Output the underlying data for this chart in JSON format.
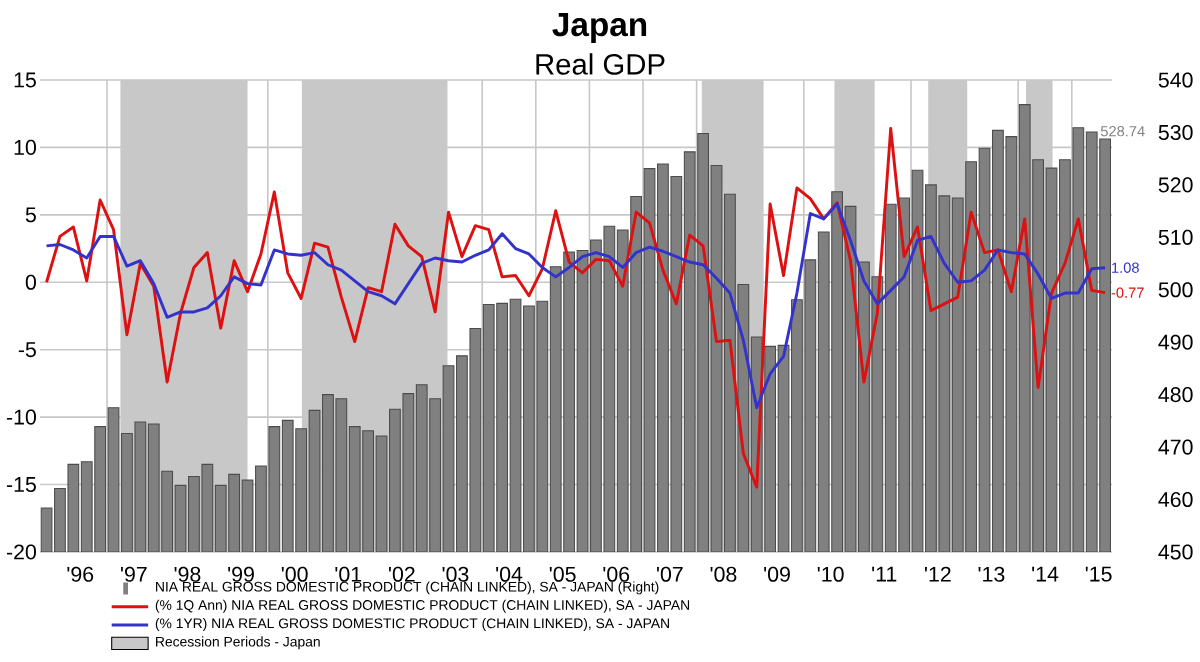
{
  "chart_data": {
    "type": "line",
    "title": "Japan",
    "subtitle": "Real GDP",
    "x": [
      "1995-11-15",
      "1996-02-15",
      "1996-05-15",
      "1996-08-15",
      "1996-11-15",
      "1997-02-15",
      "1997-05-15",
      "1997-08-15",
      "1997-11-15",
      "1998-02-15",
      "1998-05-15",
      "1998-08-15",
      "1998-11-15",
      "1999-02-15",
      "1999-05-15",
      "1999-08-15",
      "1999-11-15",
      "2000-02-15",
      "2000-05-15",
      "2000-08-15",
      "2000-11-15",
      "2001-02-15",
      "2001-05-15",
      "2001-08-15",
      "2001-11-15",
      "2002-02-15",
      "2002-05-15",
      "2002-08-15",
      "2002-11-15",
      "2003-02-15",
      "2003-05-15",
      "2003-08-15",
      "2003-11-15",
      "2004-02-15",
      "2004-05-15",
      "2004-08-15",
      "2004-11-15",
      "2005-02-15",
      "2005-05-15",
      "2005-08-15",
      "2005-11-15",
      "2006-02-15",
      "2006-05-15",
      "2006-08-15",
      "2006-11-15",
      "2007-02-15",
      "2007-05-15",
      "2007-08-15",
      "2007-11-15",
      "2008-02-15",
      "2008-05-15",
      "2008-08-15",
      "2008-11-15",
      "2009-02-15",
      "2009-05-15",
      "2009-08-15",
      "2009-11-15",
      "2010-02-15",
      "2010-05-15",
      "2010-08-15",
      "2010-11-15",
      "2011-02-15",
      "2011-05-15",
      "2011-08-15",
      "2011-11-15",
      "2012-02-15",
      "2012-05-15",
      "2012-08-15",
      "2012-11-15",
      "2013-02-15",
      "2013-05-15",
      "2013-08-15",
      "2013-11-15",
      "2014-02-15",
      "2014-05-15",
      "2014-08-15",
      "2014-11-15",
      "2015-02-15",
      "2015-05-15",
      "2015-08-15"
    ],
    "series": [
      {
        "name": "NIA REAL GROSS DOMESTIC PRODUCT (CHAIN LINKED), SA - JAPAN   (Right)",
        "type": "bar",
        "axis": "y2",
        "color": "#808080",
        "values": [
          458.4,
          462.1,
          466.7,
          467.2,
          473.9,
          477.5,
          472.6,
          474.8,
          474.4,
          465.4,
          462.7,
          464.4,
          466.7,
          462.7,
          464.8,
          463.7,
          466.4,
          473.9,
          475.1,
          473.5,
          477.0,
          480.0,
          479.2,
          473.9,
          473.1,
          472.1,
          477.2,
          480.2,
          481.9,
          479.2,
          485.5,
          487.4,
          492.6,
          497.2,
          497.4,
          498.2,
          496.9,
          497.8,
          504.4,
          507.2,
          507.5,
          509.5,
          512.1,
          511.4,
          517.8,
          523.1,
          524.0,
          521.6,
          526.3,
          529.8,
          523.7,
          518.2,
          501.0,
          491.0,
          489.2,
          489.4,
          498.1,
          505.7,
          511.0,
          518.7,
          515.9,
          505.3,
          502.5,
          516.3,
          517.5,
          522.8,
          520.0,
          517.9,
          517.5,
          524.4,
          527.0,
          530.4,
          529.2,
          535.3,
          524.8,
          523.2,
          524.8,
          530.9,
          530.1,
          528.74
        ],
        "value_labels": [
          null,
          null,
          null,
          null,
          null,
          null,
          null,
          null,
          null,
          null,
          null,
          null,
          null,
          null,
          null,
          null,
          null,
          null,
          null,
          null,
          null,
          null,
          null,
          null,
          null,
          null,
          null,
          null,
          null,
          null,
          null,
          null,
          null,
          null,
          null,
          null,
          null,
          null,
          null,
          null,
          null,
          null,
          null,
          null,
          null,
          null,
          null,
          null,
          null,
          null,
          null,
          null,
          null,
          null,
          null,
          null,
          null,
          null,
          null,
          null,
          null,
          null,
          null,
          null,
          null,
          null,
          null,
          null,
          null,
          null,
          null,
          null,
          null,
          null,
          null,
          null,
          null,
          null,
          null,
          "528.74"
        ]
      },
      {
        "name": "(% 1Q Ann) NIA REAL GROSS DOMESTIC PRODUCT (CHAIN LINKED), SA - JAPAN",
        "color": "#dd1111",
        "values": [
          0,
          3.4,
          4.1,
          0.1,
          6.1,
          3.9,
          -3.9,
          1.4,
          -0.3,
          -7.4,
          -2.3,
          1.1,
          2.2,
          -3.4,
          1.6,
          -0.7,
          2.1,
          6.7,
          0.7,
          -1.2,
          2.9,
          2.6,
          -1.1,
          -4.4,
          -0.4,
          -0.7,
          4.3,
          2.7,
          1.9,
          -2.2,
          5.2,
          1.9,
          4.2,
          3.9,
          0.4,
          0.5,
          -1.0,
          1.0,
          5.3,
          1.5,
          0.7,
          1.7,
          1.6,
          -0.3,
          5.2,
          4.4,
          0.9,
          -1.6,
          3.5,
          2.7,
          -4.4,
          -4.3,
          -12.7,
          -15.2,
          5.8,
          0.5,
          7.0,
          6.2,
          4.7,
          5.9,
          1.6,
          -7.4,
          -2.3,
          11.4,
          1.9,
          4.1,
          -2.1,
          -1.6,
          -1.1,
          5.2,
          2.2,
          2.4,
          -0.7,
          4.7,
          -7.8,
          -0.8,
          1.4,
          4.7,
          -0.6,
          -0.77
        ],
        "value_labels": [
          null,
          null,
          null,
          null,
          null,
          null,
          null,
          null,
          null,
          null,
          null,
          null,
          null,
          null,
          null,
          null,
          null,
          null,
          null,
          null,
          null,
          null,
          null,
          null,
          null,
          null,
          null,
          null,
          null,
          null,
          null,
          null,
          null,
          null,
          null,
          null,
          null,
          null,
          null,
          null,
          null,
          null,
          null,
          null,
          null,
          null,
          null,
          null,
          null,
          null,
          null,
          null,
          null,
          null,
          null,
          null,
          null,
          null,
          null,
          null,
          null,
          null,
          null,
          null,
          null,
          null,
          null,
          null,
          null,
          null,
          null,
          null,
          null,
          null,
          null,
          null,
          null,
          null,
          null,
          "-0.77"
        ]
      },
      {
        "name": "(% 1YR) NIA REAL GROSS DOMESTIC PRODUCT (CHAIN LINKED), SA - JAPAN",
        "color": "#3333cc",
        "values": [
          2.7,
          2.8,
          2.4,
          1.8,
          3.4,
          3.4,
          1.2,
          1.6,
          -0.1,
          -2.6,
          -2.2,
          -2.2,
          -1.9,
          -1.0,
          0.4,
          -0.1,
          -0.2,
          2.4,
          2.1,
          2.0,
          2.2,
          1.3,
          0.9,
          0.1,
          -0.7,
          -1.0,
          -1.6,
          -0.1,
          1.4,
          1.8,
          1.6,
          1.5,
          2.0,
          2.4,
          3.6,
          2.5,
          2.1,
          1.1,
          0.4,
          1.1,
          1.9,
          2.2,
          1.9,
          1.1,
          2.2,
          2.6,
          2.3,
          1.9,
          1.5,
          1.3,
          0.3,
          -0.8,
          -4.3,
          -9.3,
          -6.8,
          -5.5,
          -0.8,
          5.1,
          4.7,
          5.8,
          3.1,
          0.1,
          -1.6,
          -0.6,
          0.4,
          3.1,
          3.4,
          1.4,
          0.0,
          0.1,
          0.9,
          2.4,
          2.2,
          2.1,
          0.6,
          -1.2,
          -0.8,
          -0.8,
          1.0,
          1.08
        ],
        "value_labels": [
          null,
          null,
          null,
          null,
          null,
          null,
          null,
          null,
          null,
          null,
          null,
          null,
          null,
          null,
          null,
          null,
          null,
          null,
          null,
          null,
          null,
          null,
          null,
          null,
          null,
          null,
          null,
          null,
          null,
          null,
          null,
          null,
          null,
          null,
          null,
          null,
          null,
          null,
          null,
          null,
          null,
          null,
          null,
          null,
          null,
          null,
          null,
          null,
          null,
          null,
          null,
          null,
          null,
          null,
          null,
          null,
          null,
          null,
          null,
          null,
          null,
          null,
          null,
          null,
          null,
          null,
          null,
          null,
          null,
          null,
          null,
          null,
          null,
          null,
          null,
          null,
          null,
          null,
          null,
          "1.08"
        ]
      }
    ],
    "bands": [
      {
        "axis": "x",
        "from": "1997-04-01",
        "to": "1999-08-15",
        "color": "#c8c8c8",
        "label": "Recession Periods - Japan"
      },
      {
        "axis": "x",
        "from": "2000-08-20",
        "to": "2003-05-08",
        "color": "#c8c8c8"
      },
      {
        "axis": "x",
        "from": "2008-02-06",
        "to": "2009-04-01",
        "color": "#c8c8c8"
      },
      {
        "axis": "x",
        "from": "2010-07-27",
        "to": "2011-04-27",
        "color": "#c8c8c8"
      },
      {
        "axis": "x",
        "from": "2012-04-27",
        "to": "2013-01-19",
        "color": "#c8c8c8"
      },
      {
        "axis": "x",
        "from": "2014-02-24",
        "to": "2014-08-22",
        "color": "#c8c8c8"
      }
    ],
    "xlim": [
      "1995-10-01",
      "2015-10-01"
    ],
    "xticks": [
      {
        "value": "1997-01-01",
        "label": null
      },
      {
        "value": "1998-01-01",
        "label": null
      },
      {
        "value": "1999-01-01",
        "label": null
      },
      {
        "value": "2000-01-01",
        "label": null
      },
      {
        "value": "2001-01-01",
        "label": null
      },
      {
        "value": "2002-01-01",
        "label": null
      },
      {
        "value": "2003-01-01",
        "label": null
      },
      {
        "value": "2004-01-01",
        "label": null
      },
      {
        "value": "2005-01-01",
        "label": null
      },
      {
        "value": "2006-01-01",
        "label": null
      },
      {
        "value": "2007-01-01",
        "label": null
      },
      {
        "value": "2008-01-01",
        "label": null
      },
      {
        "value": "2009-01-01",
        "label": null
      },
      {
        "value": "2010-01-01",
        "label": null
      },
      {
        "value": "2011-01-01",
        "label": null
      },
      {
        "value": "2012-01-01",
        "label": null
      },
      {
        "value": "2013-01-01",
        "label": null
      },
      {
        "value": "2014-01-01",
        "label": null
      },
      {
        "value": "2015-01-01",
        "label": null
      },
      {
        "value": "1996-07-01",
        "label": "'96"
      },
      {
        "value": "1997-07-01",
        "label": "'97"
      },
      {
        "value": "1998-07-01",
        "label": "'98"
      },
      {
        "value": "1999-07-01",
        "label": "'99"
      },
      {
        "value": "2000-07-01",
        "label": "'00"
      },
      {
        "value": "2001-07-01",
        "label": "'01"
      },
      {
        "value": "2002-07-01",
        "label": "'02"
      },
      {
        "value": "2003-07-01",
        "label": "'03"
      },
      {
        "value": "2004-07-01",
        "label": "'04"
      },
      {
        "value": "2005-07-01",
        "label": "'05"
      },
      {
        "value": "2006-07-01",
        "label": "'06"
      },
      {
        "value": "2007-07-01",
        "label": "'07"
      },
      {
        "value": "2008-07-01",
        "label": "'08"
      },
      {
        "value": "2009-07-01",
        "label": "'09"
      },
      {
        "value": "2010-07-01",
        "label": "'10"
      },
      {
        "value": "2011-07-01",
        "label": "'11"
      },
      {
        "value": "2012-07-01",
        "label": "'12"
      },
      {
        "value": "2013-07-01",
        "label": "'13"
      },
      {
        "value": "2014-07-01",
        "label": "'14"
      },
      {
        "value": "2015-07-01",
        "label": "'15"
      }
    ],
    "ylim": [
      -20,
      15
    ],
    "yticks": [
      -20,
      -15,
      -10,
      -5,
      0,
      5,
      10,
      15
    ],
    "y2lim": [
      450,
      540
    ],
    "y2ticks": [
      450,
      460,
      470,
      480,
      490,
      500,
      510,
      520,
      530,
      540
    ],
    "grid": true,
    "legend": "bottom left"
  }
}
